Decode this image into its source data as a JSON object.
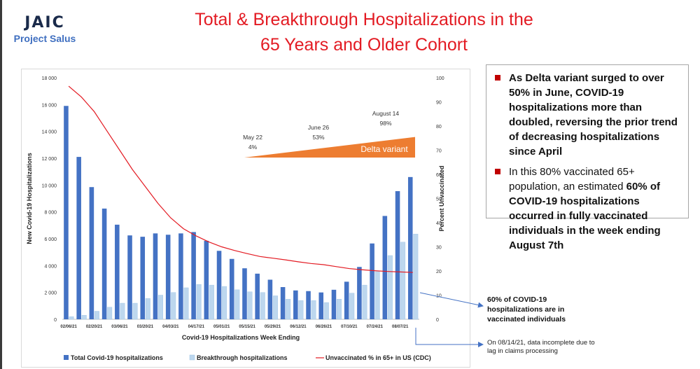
{
  "header": {
    "logo_text": "JAIC",
    "logo_subtitle": "Project Salus",
    "title_line1": "Total & Breakthrough Hospitalizations in the",
    "title_line2": "65 Years and Older Cohort"
  },
  "callout": {
    "bullet1": "As Delta variant surged to over 50% in June, COVID-19 hospitalizations more than doubled, reversing the prior trend of decreasing hospitalizations since April",
    "bullet2_pre": "In this 80% vaccinated 65+ population, an estimated ",
    "bullet2_bold": "60% of COVID-19 hospitalizations occurred in fully vaccinated individuals in the week ending August 7th",
    "bullet2_post": ""
  },
  "notes": {
    "breakthrough_note": "60% of COVID-19 hospitalizations are in vaccinated individuals",
    "incomplete_note": "On 08/14/21, data incomplete due to lag in claims processing"
  },
  "colors": {
    "total_bar": "#4472c4",
    "breakthrough_bar": "#bdd7ee",
    "unvaccinated_line": "#e31b23",
    "delta_fill": "#ed7d31",
    "title": "#e31b23",
    "callout_arrow": "#4472c4"
  },
  "chart_data": {
    "type": "bar",
    "xlabel": "Covid-19 Hospitalizations Week Ending",
    "ylabel": "New Covid-19 Hospitalizations",
    "y2label": "Percent Unvaccinated",
    "ylim": [
      0,
      18000
    ],
    "y_ticks": [
      "0",
      "2 000",
      "4 000",
      "6 000",
      "8 000",
      "10 000",
      "12 000",
      "14 000",
      "16 000",
      "18 000"
    ],
    "y2lim": [
      0,
      100
    ],
    "y2_ticks": [
      "0",
      "10",
      "20",
      "30",
      "40",
      "50",
      "60",
      "70",
      "80",
      "90",
      "100"
    ],
    "x_tick_labels": [
      "02/06/21",
      "02/20/21",
      "03/06/21",
      "03/20/21",
      "04/03/21",
      "04/17/21",
      "05/01/21",
      "05/15/21",
      "05/29/21",
      "06/12/21",
      "06/26/21",
      "07/10/21",
      "07/24/21",
      "08/07/21"
    ],
    "weeks": [
      "02/06/21",
      "02/13/21",
      "02/20/21",
      "02/27/21",
      "03/06/21",
      "03/13/21",
      "03/20/21",
      "03/27/21",
      "04/03/21",
      "04/10/21",
      "04/17/21",
      "04/24/21",
      "05/01/21",
      "05/08/21",
      "05/15/21",
      "05/22/21",
      "05/29/21",
      "06/05/21",
      "06/12/21",
      "06/19/21",
      "06/26/21",
      "07/03/21",
      "07/10/21",
      "07/17/21",
      "07/24/21",
      "07/31/21",
      "08/07/21",
      "08/14/21"
    ],
    "series": [
      {
        "name": "Total Covid-19 hospitalizations",
        "values": [
          15900,
          12100,
          9850,
          8250,
          7050,
          6250,
          6150,
          6400,
          6300,
          6400,
          6500,
          5850,
          5100,
          4500,
          3800,
          3400,
          2950,
          2400,
          2150,
          2100,
          2000,
          2200,
          2800,
          3900,
          5650,
          7700,
          9550,
          10600
        ]
      },
      {
        "name": "Breakthrough hospitalizations",
        "values": [
          200,
          300,
          600,
          900,
          1200,
          1200,
          1550,
          1800,
          2000,
          2350,
          2600,
          2550,
          2450,
          2200,
          2050,
          2000,
          1750,
          1500,
          1400,
          1400,
          1250,
          1500,
          1950,
          2550,
          3550,
          4750,
          5750,
          6350
        ]
      },
      {
        "name": "Unvaccinated % in 65+ in US (CDC)",
        "axis": "right",
        "values": [
          96.5,
          92,
          86,
          78,
          70,
          62,
          55,
          48,
          42,
          37.5,
          34.5,
          32,
          30,
          28.5,
          27.2,
          26,
          25.3,
          24.6,
          23.8,
          23.1,
          22.6,
          21.8,
          21,
          20.5,
          20.1,
          19.8,
          19.6,
          19.4
        ]
      }
    ],
    "delta_variant": {
      "label": "Delta variant",
      "points": [
        {
          "date": "May 22",
          "percent": "4%",
          "value": 4
        },
        {
          "date": "June 26",
          "percent": "53%",
          "value": 53
        },
        {
          "date": "August 14",
          "percent": "98%",
          "value": 98
        }
      ]
    },
    "legend": {
      "placement": "bottom"
    }
  }
}
